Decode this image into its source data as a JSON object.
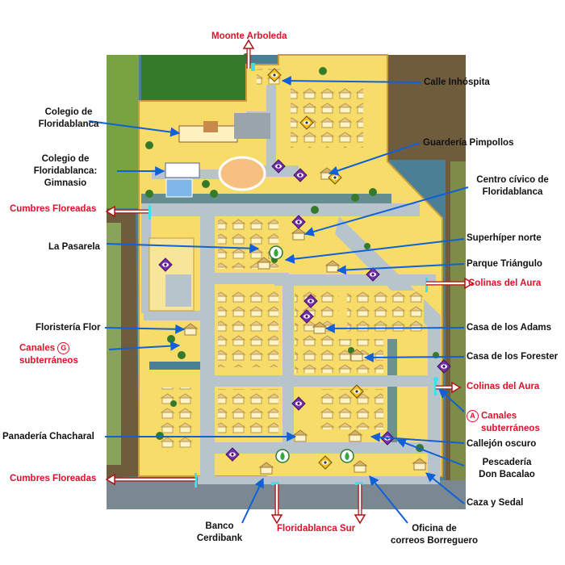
{
  "labels": {
    "moonte": "Moonte Arboleda",
    "calle": "Calle Inhóspita",
    "colegio_l1": "Colegio de",
    "colegio_l2": "Floridablanca",
    "gimnasio_l1": "Colegio de",
    "gimnasio_l2": "Floridablanca:",
    "gimnasio_l3": "Gimnasio",
    "guarderia": "Guardería Pimpollos",
    "centro_l1": "Centro cívico de",
    "centro_l2": "Floridablanca",
    "cumbres_top": "Cumbres Floreadas",
    "pasarela": "La Pasarela",
    "superhiper": "Superhíper norte",
    "parque": "Parque Triángulo",
    "colinas_top": "Colinas del Aura",
    "floristeria": "Floristería Flor",
    "adams": "Casa de los Adams",
    "canales_g_letter": "G",
    "canales_g_l1": "Canales",
    "canales_g_l2": "subterráneos",
    "forester": "Casa de los Forester",
    "colinas_bottom": "Colinas del Aura",
    "canales_a_letter": "A",
    "canales_a_l1": "Canales",
    "canales_a_l2": "subterráneos",
    "panaderia": "Panadería Chacharal",
    "callejon": "Callejón oscuro",
    "pescaderia_l1": "Pescadería",
    "pescaderia_l2": "Don Bacalao",
    "cumbres_bottom": "Cumbres Floreadas",
    "caza": "Caza y Sedal",
    "banco_l1": "Banco",
    "banco_l2": "Cerdibank",
    "floridablanca_sur": "Floridablanca Sur",
    "oficina_l1": "Oficina de",
    "oficina_l2": "correos Borreguero"
  },
  "colors": {
    "exit_label": "#e0102a",
    "arrow_blue": "#1060d8",
    "ground": "#f7dc6a",
    "road": "#b8c4cc",
    "water": "#4a7f96",
    "bush": "#357a2a",
    "grass": "#77a440",
    "cliff": "#6f5c3c"
  },
  "icons": {
    "quest_marker": "purple-diamond-eye-icon",
    "shop_marker": "yellow-diamond-eye-icon",
    "exit_marker": "cyan-exit-icon",
    "feature_marker": "green-flame-icon"
  }
}
